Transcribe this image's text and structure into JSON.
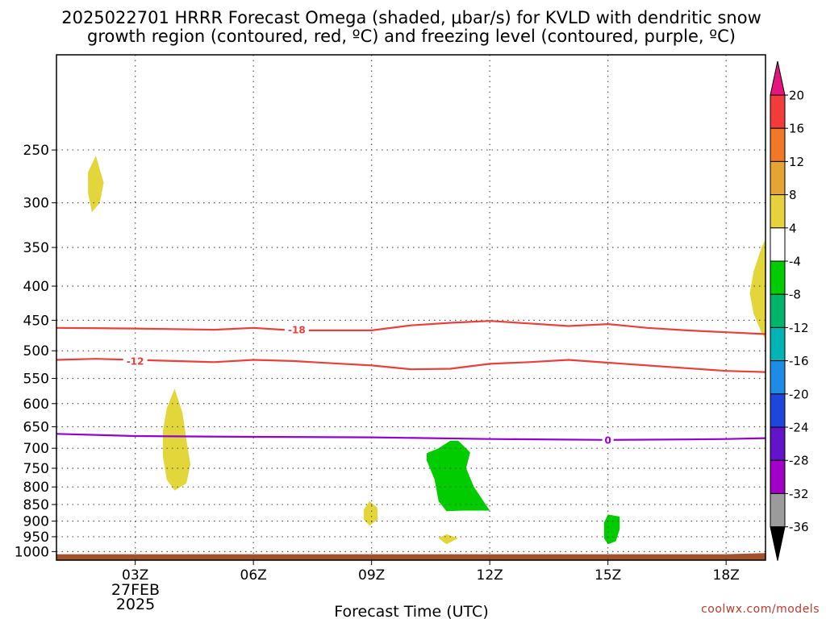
{
  "title_line1": "2025022701 HRRR Forecast Omega (shaded, μbar/s) for KVLD with dendritic snow",
  "title_line2": "growth region (contoured, red, ºC) and freezing level (contoured, purple, ºC)",
  "xlabel": "Forecast Time (UTC)",
  "credit": "coolwx.com/models",
  "date_label_line1": "27FEB",
  "date_label_line2": "2025",
  "colors": {
    "dgz": "#e8403a",
    "freezing": "#9400d3",
    "ground": "#a0522d",
    "upward_4_8": "#e3d63a",
    "downward_8_4": "#00cc00",
    "grid": "#555555"
  },
  "chart_data": {
    "type": "heatmap",
    "x_unit": "forecast hour (UTC)",
    "y_unit": "pressure (mb)",
    "xlim": [
      1,
      19
    ],
    "ylim": [
      1030,
      180
    ],
    "y_scale": "log",
    "x_ticks": [
      {
        "value": 3,
        "label": "03Z"
      },
      {
        "value": 6,
        "label": "06Z"
      },
      {
        "value": 9,
        "label": "09Z"
      },
      {
        "value": 12,
        "label": "12Z"
      },
      {
        "value": 15,
        "label": "15Z"
      },
      {
        "value": 18,
        "label": "18Z"
      }
    ],
    "y_ticks": [
      250,
      300,
      350,
      400,
      450,
      500,
      550,
      600,
      650,
      700,
      750,
      800,
      850,
      900,
      950,
      1000
    ],
    "grid": true,
    "colorbar": {
      "labels": [
        "20",
        "16",
        "12",
        "8",
        "4",
        "-4",
        "-8",
        "-12",
        "-16",
        "-20",
        "-24",
        "-28",
        "-32",
        "-36"
      ],
      "colors": [
        "#e6147d",
        "#f23c3c",
        "#f07828",
        "#e6a532",
        "#e6d23c",
        "#ffffff",
        "#00cc00",
        "#00b469",
        "#00b4b4",
        "#1e8ce6",
        "#1e46dc",
        "#6414c8",
        "#a000c8",
        "#9b9b9b",
        "#000000"
      ]
    },
    "contours": [
      {
        "label": "-18",
        "color": "#e8403a",
        "label_at": [
          7.1,
          465
        ],
        "x": [
          1,
          3,
          5,
          6,
          7,
          9,
          10,
          11,
          12,
          13,
          14,
          15,
          16,
          17,
          18,
          19
        ],
        "y": [
          462,
          463,
          465,
          462,
          466,
          466,
          458,
          454,
          451,
          455,
          459,
          456,
          462,
          466,
          469,
          472
        ]
      },
      {
        "label": "-12",
        "color": "#e8403a",
        "label_at": [
          3.0,
          518
        ],
        "x": [
          1,
          2,
          3,
          5,
          6,
          7,
          8,
          9,
          10,
          11,
          12,
          13,
          14,
          15,
          16,
          17,
          18,
          19
        ],
        "y": [
          516,
          514,
          516,
          520,
          516,
          518,
          522,
          526,
          533,
          532,
          523,
          520,
          516,
          521,
          526,
          531,
          536,
          538
        ]
      },
      {
        "label": "0",
        "color": "#9400d3",
        "label_at": [
          15.0,
          680
        ],
        "x": [
          1,
          3,
          6,
          9,
          12,
          15,
          17,
          18,
          19
        ],
        "y": [
          666,
          671,
          673,
          674,
          678,
          680,
          679,
          678,
          676
        ]
      }
    ],
    "shaded": [
      {
        "range": "4 to 8",
        "color": "#e3d63a",
        "x": [
          2.0,
          2.2,
          2.1,
          1.9,
          1.8,
          1.8,
          2.0
        ],
        "y": [
          255,
          280,
          300,
          310,
          290,
          270,
          255
        ]
      },
      {
        "range": "4 to 8",
        "color": "#e3d63a",
        "x": [
          4.0,
          4.2,
          4.3,
          4.4,
          4.3,
          4.0,
          3.8,
          3.7,
          3.7,
          3.8,
          4.0
        ],
        "y": [
          570,
          620,
          680,
          740,
          790,
          810,
          780,
          720,
          660,
          610,
          570
        ]
      },
      {
        "range": "4 to 8",
        "color": "#e3d63a",
        "x": [
          8.95,
          9.15,
          9.15,
          8.95,
          8.8,
          8.8,
          8.95
        ],
        "y": [
          840,
          860,
          895,
          915,
          895,
          865,
          840
        ]
      },
      {
        "range": "4 to 8",
        "color": "#e3d63a",
        "x": [
          10.9,
          11.2,
          10.9,
          10.7,
          10.9
        ],
        "y": [
          942,
          955,
          975,
          955,
          942
        ]
      },
      {
        "range": "4 to 8",
        "color": "#e3d63a",
        "x": [
          19.0,
          18.9,
          18.7,
          18.6,
          18.7,
          18.9,
          19.0
        ],
        "y": [
          340,
          350,
          380,
          410,
          440,
          470,
          480
        ]
      },
      {
        "range": "-8 to -4",
        "color": "#00cc00",
        "x": [
          10.7,
          11.0,
          11.2,
          11.5,
          11.4,
          11.6,
          12.0,
          11.3,
          10.9,
          10.7,
          10.6,
          10.4,
          10.4
        ],
        "y": [
          700,
          682,
          682,
          710,
          750,
          800,
          868,
          868,
          870,
          840,
          780,
          730,
          712
        ]
      },
      {
        "range": "-8 to -4",
        "color": "#00cc00",
        "x": [
          15.0,
          15.3,
          15.3,
          15.2,
          15.0,
          14.9,
          14.9,
          15.0
        ],
        "y": [
          880,
          886,
          925,
          965,
          975,
          955,
          905,
          880
        ]
      }
    ],
    "ground": {
      "x": [
        1,
        18,
        19
      ],
      "top": [
        1009,
        1009,
        1005
      ]
    }
  }
}
